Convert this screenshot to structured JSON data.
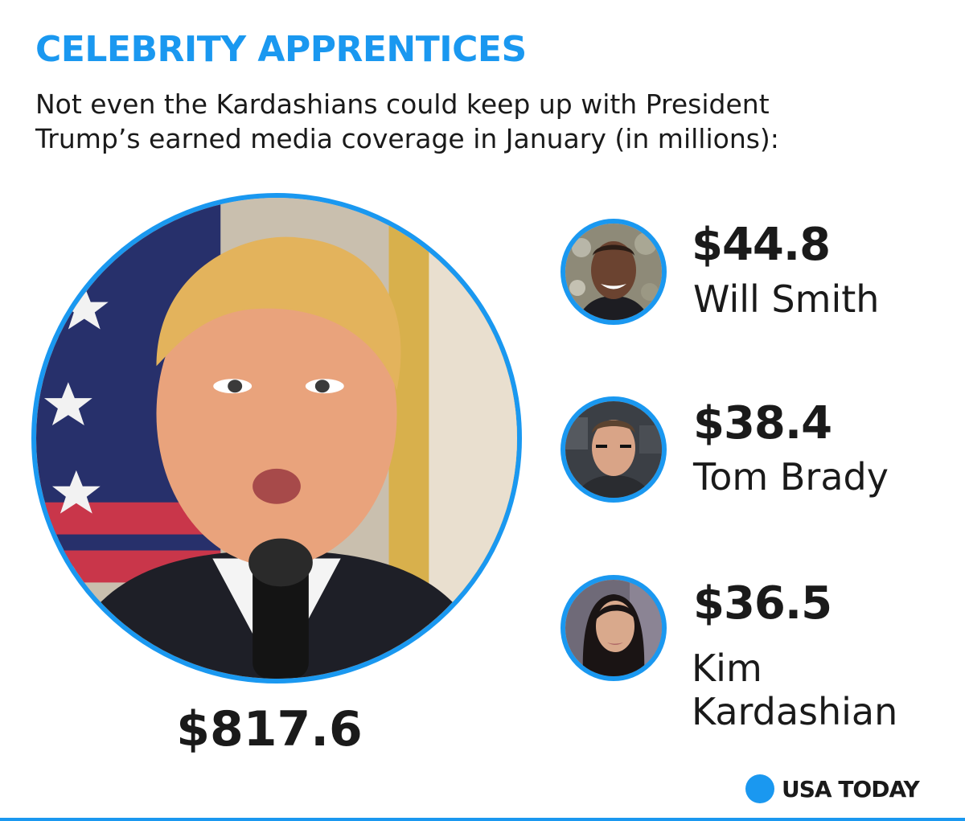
{
  "header": {
    "title": "CELEBRITY APPRENTICES",
    "subtitle_lines": [
      "Not even the Kardashians could keep up with President",
      "Trump’s earned media coverage in January (in millions):"
    ]
  },
  "featured": {
    "value": "$817.6",
    "photo_icon": "trump-photo"
  },
  "others": [
    {
      "value": "$44.8",
      "name_lines": [
        "Will Smith"
      ],
      "photo_icon": "will-smith-photo"
    },
    {
      "value": "$38.4",
      "name_lines": [
        "Tom Brady"
      ],
      "photo_icon": "tom-brady-photo"
    },
    {
      "value": "$36.5",
      "name_lines": [
        "Kim",
        "Kardashian"
      ],
      "photo_icon": "kim-kardashian-photo"
    }
  ],
  "logo": {
    "text": "USA TODAY"
  },
  "colors": {
    "accent": "#1a98f0",
    "text": "#1a1a1a",
    "background": "#ffffff"
  }
}
